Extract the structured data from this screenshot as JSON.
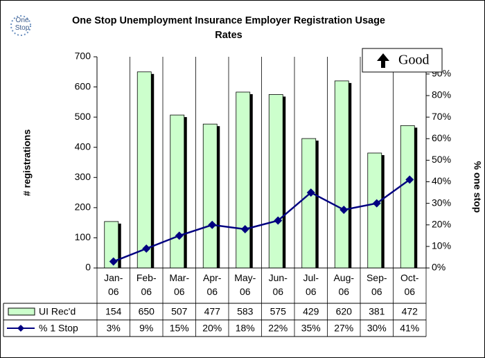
{
  "chart_data": {
    "type": "bar_line",
    "title": "One Stop Unemployment Insurance Employer Registration Usage Rates",
    "logo": "One Stop",
    "annotation": "Good",
    "y_label": "# registrations",
    "y2_label": "% one stop",
    "categories": [
      "Jan-06",
      "Feb-06",
      "Mar-06",
      "Apr-06",
      "May-06",
      "Jun-06",
      "Jul-06",
      "Aug-06",
      "Sep-06",
      "Oct-06"
    ],
    "series": [
      {
        "name": "UI Rec'd",
        "color": "#ccffcc",
        "values": [
          154,
          650,
          507,
          477,
          583,
          575,
          429,
          620,
          381,
          472
        ]
      },
      {
        "name": "% 1 Stop",
        "color": "#000080",
        "axis": "y2",
        "values": [
          3,
          9,
          15,
          20,
          18,
          22,
          35,
          27,
          30,
          41
        ],
        "value_labels": [
          "3%",
          "9%",
          "15%",
          "20%",
          "18%",
          "22%",
          "35%",
          "27%",
          "30%",
          "41%"
        ]
      }
    ],
    "ylim": [
      0,
      700
    ],
    "yticks": [
      0,
      100,
      200,
      300,
      400,
      500,
      600,
      700
    ],
    "y2lim": [
      0,
      98
    ],
    "y2ticks": [
      {
        "value": 0,
        "label": "0%"
      },
      {
        "value": 10,
        "label": "10%"
      },
      {
        "value": 20,
        "label": "20%"
      },
      {
        "value": 30,
        "label": "30%"
      },
      {
        "value": 40,
        "label": "40%"
      },
      {
        "value": 50,
        "label": "50%"
      },
      {
        "value": 60,
        "label": "60%"
      },
      {
        "value": 70,
        "label": "70%"
      },
      {
        "value": 80,
        "label": "80%"
      },
      {
        "value": 90,
        "label": "90%"
      }
    ]
  }
}
